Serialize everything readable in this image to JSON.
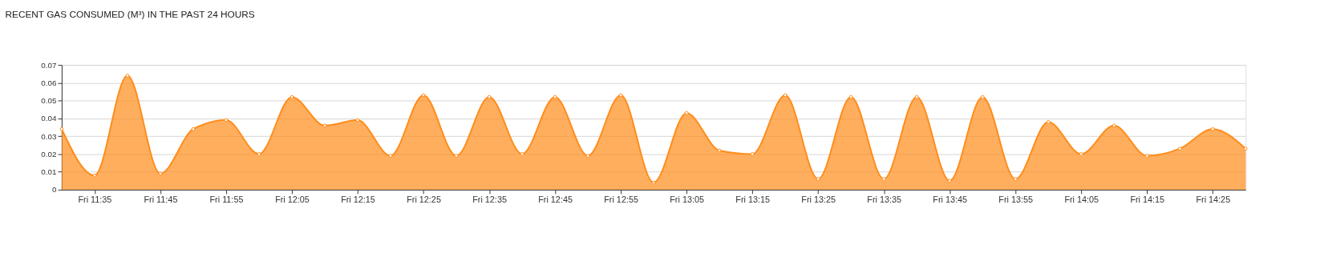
{
  "chart_data": {
    "type": "area",
    "title": "RECENT GAS CONSUMED (M³) IN THE PAST 24 HOURS",
    "categories": [
      null,
      "Fri 11:35",
      null,
      "Fri 11:45",
      null,
      "Fri 11:55",
      null,
      "Fri 12:05",
      null,
      "Fri 12:15",
      null,
      "Fri 12:25",
      null,
      "Fri 12:35",
      null,
      "Fri 12:45",
      null,
      "Fri 12:55",
      null,
      "Fri 13:05",
      null,
      "Fri 13:15",
      null,
      "Fri 13:25",
      null,
      "Fri 13:35",
      null,
      "Fri 13:45",
      null,
      "Fri 13:55",
      null,
      "Fri 14:05",
      null,
      "Fri 14:15",
      null,
      "Fri 14:25",
      null
    ],
    "series": [
      {
        "color": "#ff8c1a",
        "values": [
          0.034,
          0.008,
          0.064,
          0.009,
          0.034,
          0.039,
          0.02,
          0.052,
          0.036,
          0.039,
          0.019,
          0.053,
          0.019,
          0.052,
          0.02,
          0.052,
          0.019,
          0.053,
          0.004,
          0.043,
          0.022,
          0.02,
          0.053,
          0.006,
          0.052,
          0.006,
          0.052,
          0.005,
          0.052,
          0.006,
          0.038,
          0.02,
          0.036,
          0.019,
          0.023,
          0.034,
          0.023
        ]
      }
    ],
    "ylim": [
      0,
      0.07
    ],
    "yticks": [
      0,
      0.01,
      0.02,
      0.03,
      0.04,
      0.05,
      0.06,
      0.07
    ],
    "grid": "y",
    "marker": "circle"
  }
}
